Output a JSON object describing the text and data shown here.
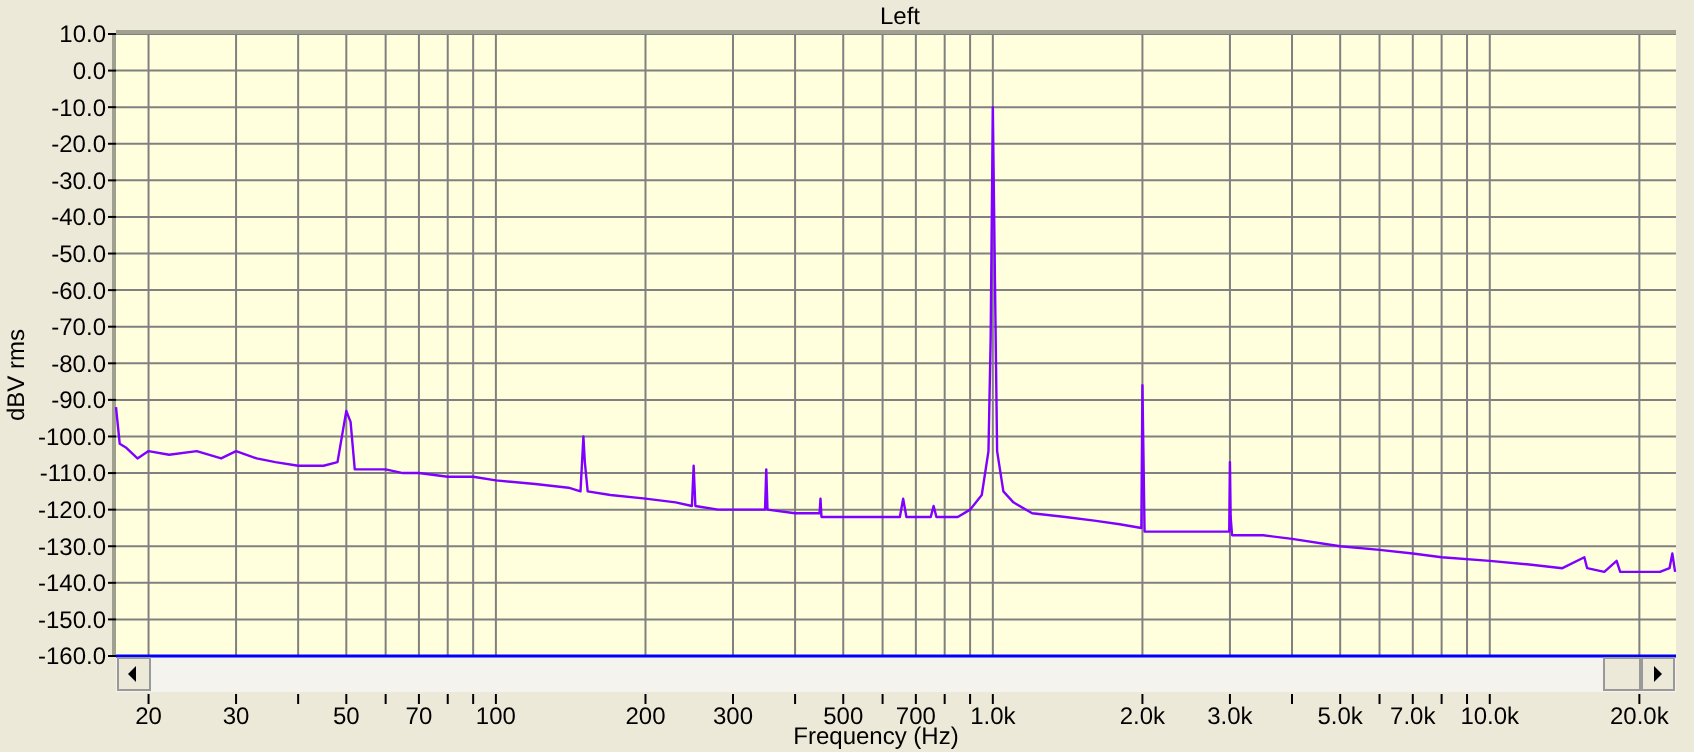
{
  "chart_data": {
    "type": "line",
    "title": "Left",
    "xlabel": "Frequency (Hz)",
    "ylabel": "dBV rms",
    "log": "x",
    "grid": true,
    "marker": "none",
    "line_style": "solid",
    "xlim": [
      17.2,
      23700
    ],
    "ylim": [
      -160,
      10
    ],
    "xticks": [
      20,
      30,
      {
        "value": 40,
        "label": null
      },
      50,
      {
        "value": 60,
        "label": null
      },
      70,
      {
        "value": 80,
        "label": null
      },
      {
        "value": 90,
        "label": null
      },
      100,
      200,
      300,
      {
        "value": 400,
        "label": null
      },
      500,
      {
        "value": 600,
        "label": null
      },
      700,
      {
        "value": 800,
        "label": null
      },
      {
        "value": 900,
        "label": null
      },
      {
        "value": 1000,
        "label": "1.0k"
      },
      {
        "value": 2000,
        "label": "2.0k"
      },
      {
        "value": 3000,
        "label": "3.0k"
      },
      {
        "value": 4000,
        "label": null
      },
      {
        "value": 5000,
        "label": "5.0k"
      },
      {
        "value": 6000,
        "label": null
      },
      {
        "value": 7000,
        "label": "7.0k"
      },
      {
        "value": 8000,
        "label": null
      },
      {
        "value": 9000,
        "label": null
      },
      {
        "value": 10000,
        "label": "10.0k"
      },
      {
        "value": 20000,
        "label": "20.0k"
      }
    ],
    "yticks": [
      {
        "value": 10,
        "label": "10.0"
      },
      {
        "value": 0,
        "label": "0.0"
      },
      {
        "value": -10,
        "label": "-10.0"
      },
      {
        "value": -20,
        "label": "-20.0"
      },
      {
        "value": -30,
        "label": "-30.0"
      },
      {
        "value": -40,
        "label": "-40.0"
      },
      {
        "value": -50,
        "label": "-50.0"
      },
      {
        "value": -60,
        "label": "-60.0"
      },
      {
        "value": -70,
        "label": "-70.0"
      },
      {
        "value": -80,
        "label": "-80.0"
      },
      {
        "value": -90,
        "label": "-90.0"
      },
      {
        "value": -100,
        "label": "-100.0"
      },
      {
        "value": -110,
        "label": "-110.0"
      },
      {
        "value": -120,
        "label": "-120.0"
      },
      {
        "value": -130,
        "label": "-130.0"
      },
      {
        "value": -140,
        "label": "-140.0"
      },
      {
        "value": -150,
        "label": "-150.0"
      },
      {
        "value": -160,
        "label": "-160.0"
      }
    ],
    "series": [
      {
        "color": "#8000ff",
        "x": [
          17.2,
          17.5,
          18,
          19,
          20,
          22,
          25,
          28,
          30,
          33,
          36,
          40,
          45,
          48,
          50,
          51,
          52,
          55,
          60,
          65,
          70,
          80,
          90,
          100,
          120,
          140,
          148,
          150,
          151,
          153,
          170,
          200,
          230,
          248,
          250,
          252,
          280,
          300,
          330,
          348,
          350,
          352,
          400,
          448,
          450,
          452,
          500,
          600,
          650,
          660,
          670,
          750,
          760,
          770,
          850,
          900,
          950,
          980,
          990,
          1000,
          1010,
          1020,
          1050,
          1100,
          1200,
          1400,
          1600,
          1800,
          1990,
          2000,
          2010,
          2020,
          2300,
          2600,
          2990,
          3000,
          3010,
          3030,
          3500,
          4000,
          5000,
          6000,
          7000,
          8000,
          10000,
          12000,
          14000,
          15500,
          15700,
          17000,
          18000,
          18300,
          19000,
          20000,
          22000,
          23000,
          23300,
          23600
        ],
        "values": [
          -92,
          -102,
          -103,
          -106,
          -104,
          -105,
          -104,
          -106,
          -104,
          -106,
          -107,
          -108,
          -108,
          -107,
          -93,
          -96,
          -109,
          -109,
          -109,
          -110,
          -110,
          -111,
          -111,
          -112,
          -113,
          -114,
          -115,
          -100,
          -107,
          -115,
          -116,
          -117,
          -118,
          -119,
          -108,
          -119,
          -120,
          -120,
          -120,
          -120,
          -109,
          -120,
          -121,
          -121,
          -117,
          -122,
          -122,
          -122,
          -122,
          -117,
          -122,
          -122,
          -119,
          -122,
          -122,
          -120,
          -116,
          -104,
          -73,
          -10,
          -58,
          -104,
          -115,
          -118,
          -121,
          -122,
          -123,
          -124,
          -125,
          -86,
          -106,
          -126,
          -126,
          -126,
          -126,
          -107,
          -122,
          -127,
          -127,
          -128,
          -130,
          -131,
          -132,
          -133,
          -134,
          -135,
          -136,
          -133,
          -136,
          -137,
          -134,
          -137,
          -137,
          -137,
          -137,
          -136,
          -132,
          -137
        ]
      }
    ]
  }
}
